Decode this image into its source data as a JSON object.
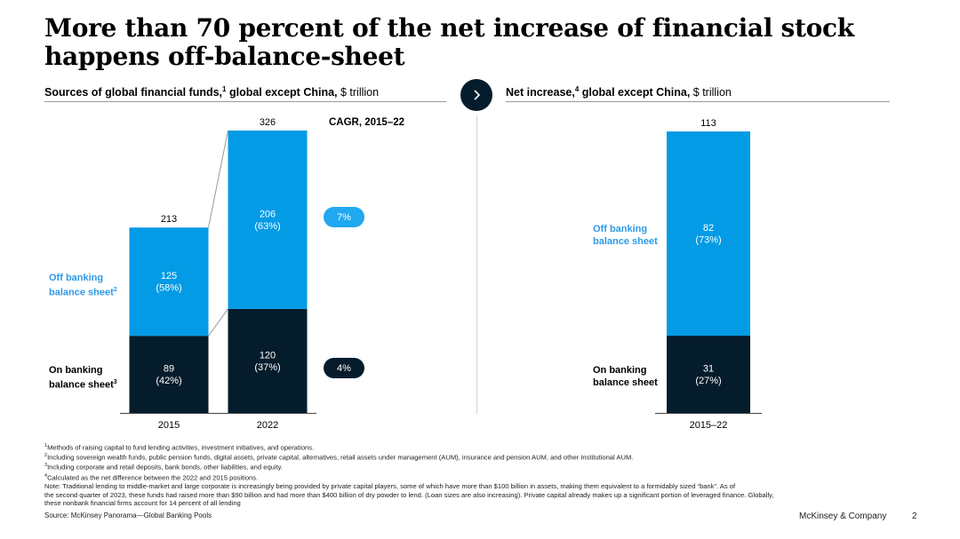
{
  "title": "More than 70 percent of the net increase of financial stock happens off-balance-sheet",
  "left_subtitle": {
    "main": "Sources of global financial funds,",
    "sup": "1",
    "rest": " global except China,",
    "unit": " $ trillion"
  },
  "right_subtitle": {
    "main": "Net increase,",
    "sup": "4",
    "rest": " global except China,",
    "unit": " $ trillion"
  },
  "left_labels": {
    "off_line1": "Off banking",
    "off_line2": "balance sheet",
    "off_sup": "2",
    "on_line1": "On banking",
    "on_line2": "balance sheet",
    "on_sup": "3"
  },
  "right_labels": {
    "off_line1": "Off banking",
    "off_line2": "balance sheet",
    "on_line1": "On banking",
    "on_line2": "balance sheet"
  },
  "cagr": {
    "header": "CAGR, 2015–22",
    "off": "7%",
    "on": "4%"
  },
  "colors": {
    "off": "#039be5",
    "on": "#051c2c",
    "off_label": "#2e9ae6",
    "pill_light": "#20a8f0"
  },
  "chart_data": [
    {
      "type": "bar",
      "stacked": true,
      "title": "Sources of global financial funds, global except China, $ trillion",
      "categories": [
        "2015",
        "2022"
      ],
      "series": [
        {
          "name": "On banking balance sheet",
          "values": [
            89,
            120
          ],
          "labels": [
            "89\n(42%)",
            "120\n(37%)"
          ]
        },
        {
          "name": "Off banking balance sheet",
          "values": [
            125,
            206
          ],
          "labels": [
            "125\n(58%)",
            "206\n(63%)"
          ]
        }
      ],
      "totals": [
        "213",
        "326"
      ],
      "ylim": [
        0,
        326
      ]
    },
    {
      "type": "bar",
      "stacked": true,
      "title": "Net increase, global except China, $ trillion",
      "categories": [
        "2015–22"
      ],
      "series": [
        {
          "name": "On banking balance sheet",
          "values": [
            31
          ],
          "labels": [
            "31\n(27%)"
          ]
        },
        {
          "name": "Off banking balance sheet",
          "values": [
            82
          ],
          "labels": [
            "82\n(73%)"
          ]
        }
      ],
      "totals": [
        "113"
      ],
      "ylim": [
        0,
        113
      ]
    }
  ],
  "footnotes": {
    "f1": {
      "sup": "1",
      "text": "Methods of raising capital to fund lending activities, investment initiatives, and operations."
    },
    "f2": {
      "sup": "2",
      "text": "Including sovereign wealth funds, public pension funds, digital assets, private capital, alternatives, retail assets under management (AUM), insurance and pension AUM, and other Institutional AUM."
    },
    "f3": {
      "sup": "3",
      "text": "Including corporate and retail deposits, bank bonds, other liabilities, and equity."
    },
    "f4": {
      "sup": "4",
      "text": "Calculated as the net difference between the 2022 and 2015 positions."
    },
    "note_l1": "Note: Traditional lending to middle-market and large corporate is increasingly being provided by private capital players, some of which have more than $100 billion in assets, making them equivalent to a formidably sized “bank”. As of",
    "note_l2": "the second quarter of 2023, these funds had raised more than $90 billion and had more than $400 billion of dry powder to lend. (Loan sizes are also increasing). Private capital already makes up a significant portion of leveraged finance. Globally,",
    "note_l3": "these nonbank financial firms account for 14 percent of all lending"
  },
  "source": "Source: McKinsey Panorama—Global Banking Pools",
  "brand": "McKinsey & Company",
  "page_number": "2"
}
